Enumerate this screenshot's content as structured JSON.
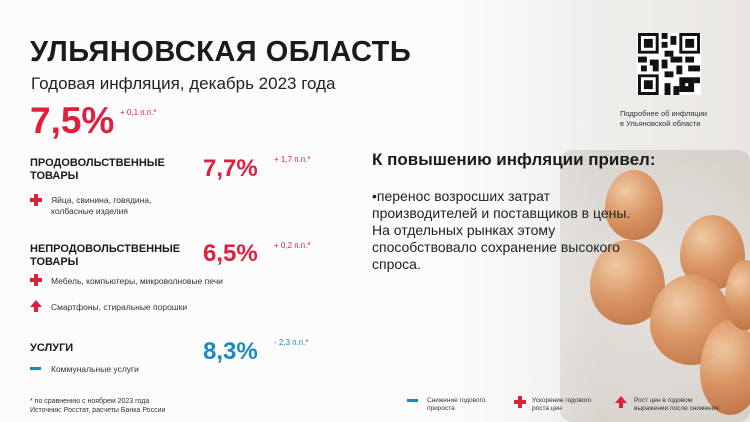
{
  "header": {
    "title": "УЛЬЯНОВСКАЯ ОБЛАСТЬ",
    "subtitle": "Годовая инфляция, декабрь 2023 года"
  },
  "total": {
    "value": "7,5%",
    "delta": "+ 0,1 п.п.*"
  },
  "categories": [
    {
      "name": "ПРОДОВОЛЬСТВЕННЫЕ ТОВАРЫ",
      "value": "7,7%",
      "delta": "+ 1,7 п.п.*",
      "color": "#e01f3d",
      "items": [
        {
          "icon": "plus-icon",
          "text": "Яйца, свинина, говядина, колбасные изделия"
        }
      ]
    },
    {
      "name": "НЕПРОДОВОЛЬСТВЕННЫЕ ТОВАРЫ",
      "value": "6,5%",
      "delta": "+ 0,2 п.п.*",
      "color": "#e01f3d",
      "items": [
        {
          "icon": "plus-icon",
          "text": "Мебель, компьютеры, микроволновые печи"
        },
        {
          "icon": "arrow-up-icon",
          "text": "Смартфоны, стиральные порошки"
        }
      ]
    },
    {
      "name": "УСЛУГИ",
      "value": "8,3%",
      "delta": "- 2,3 п.п.*",
      "color": "#1b88bf",
      "items": [
        {
          "icon": "minus-icon",
          "text": "Коммунальные услуги"
        }
      ]
    }
  ],
  "explanation": {
    "heading": "К повышению инфляции привел:",
    "text": "•перенос возросших затрат производителей и поставщиков в цены. На отдельных рынках этому способствовало сохранение высокого спроса."
  },
  "qr": {
    "caption_line1": "Подробнее об инфляции",
    "caption_line2": "в Ульяновской области"
  },
  "footnote": {
    "line1": "* по сравнению с ноябрем 2023 года",
    "line2": "Источник: Росстат, расчеты Банка России"
  },
  "legend": [
    {
      "icon": "minus-icon",
      "line1": "Снижение годового",
      "line2": "прироста"
    },
    {
      "icon": "plus-icon",
      "line1": "Ускорение годового",
      "line2": "роста цен"
    },
    {
      "icon": "arrow-up-icon",
      "line1": "Рост цен в годовом",
      "line2": "выражении после снижения"
    }
  ]
}
